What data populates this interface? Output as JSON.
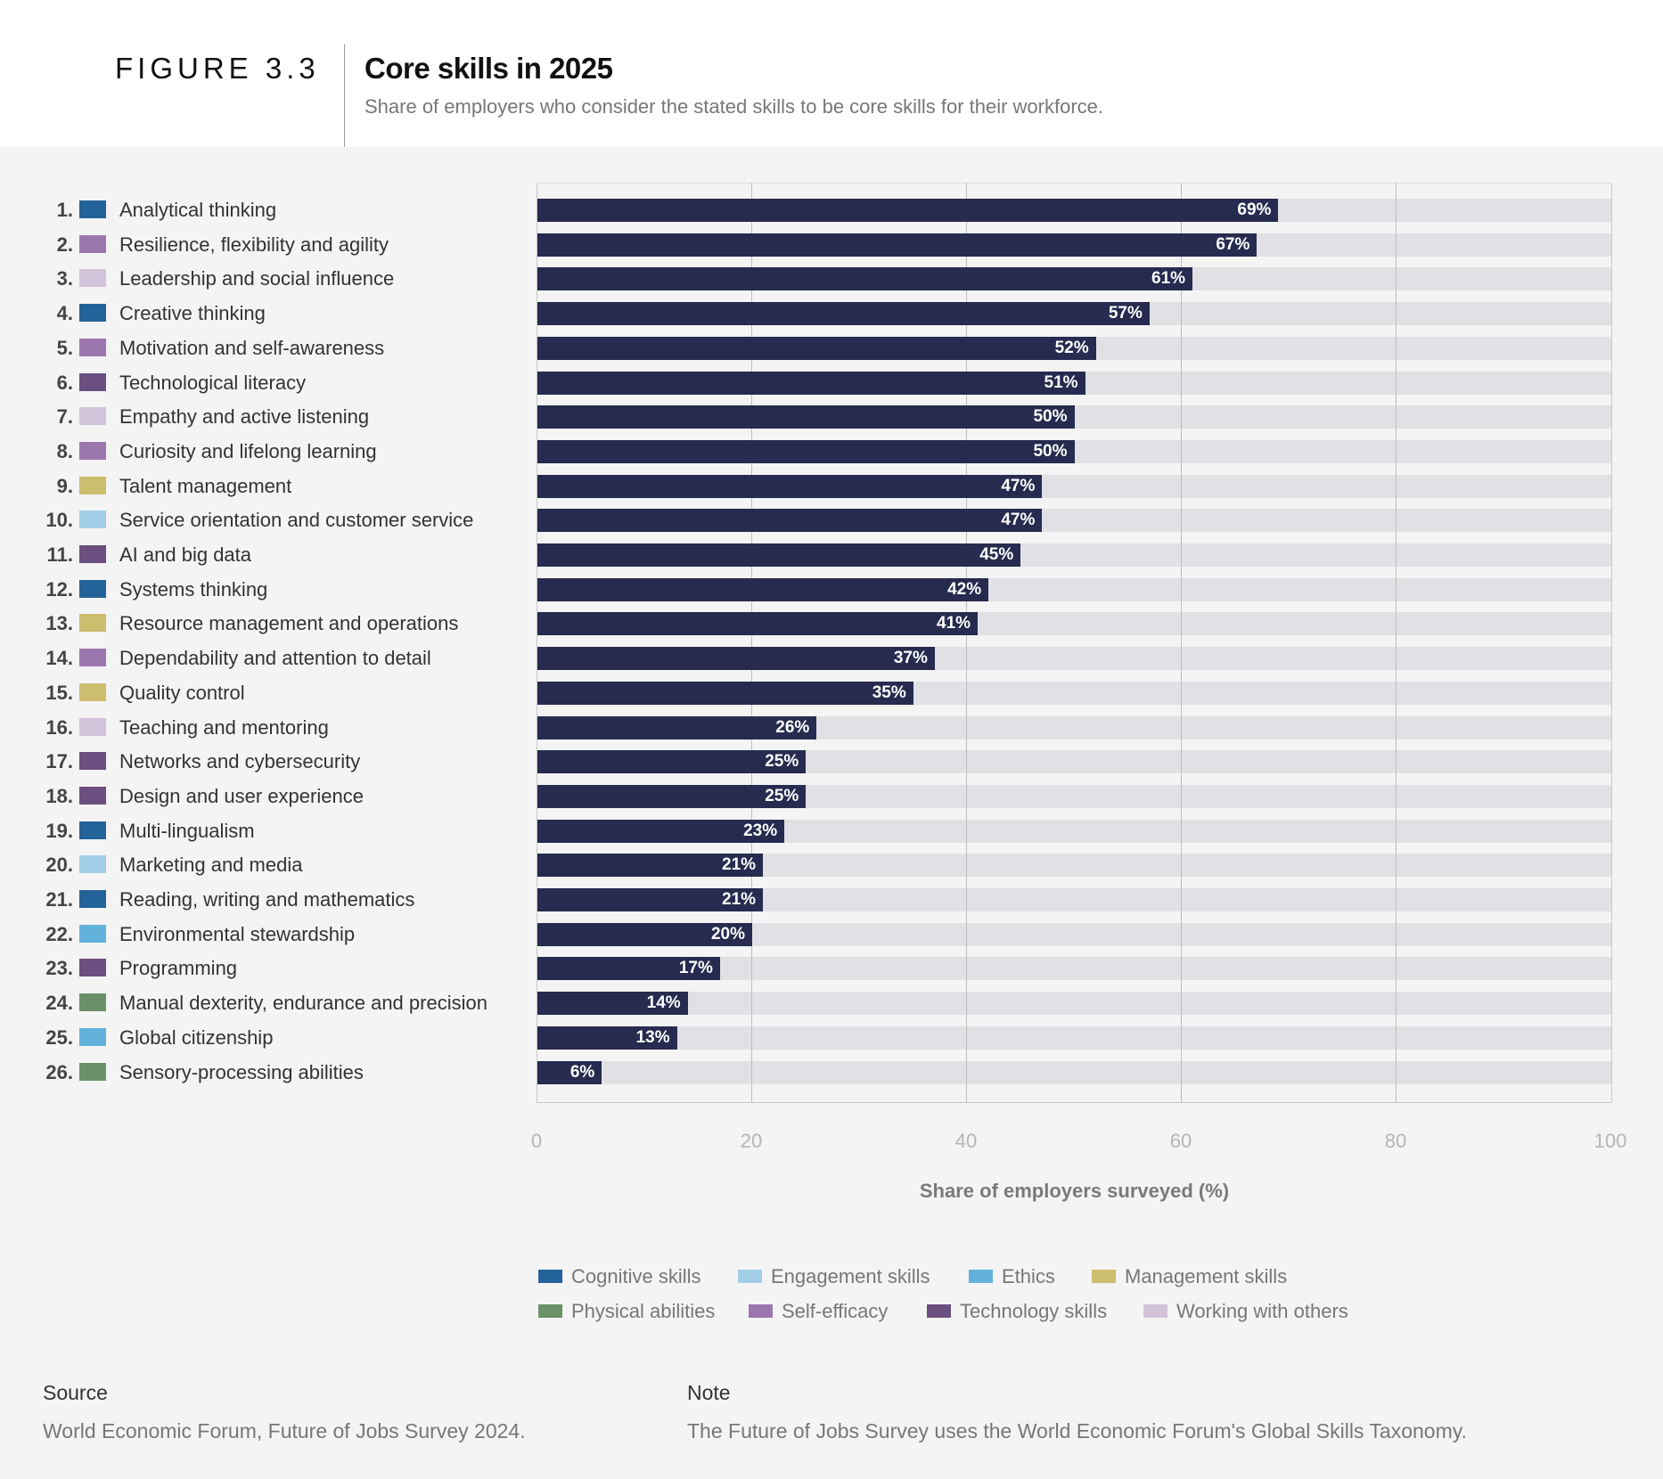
{
  "header": {
    "figure": "FIGURE 3.3",
    "title": "Core skills in 2025",
    "subtitle": "Share of employers who consider the stated skills to be core skills for their workforce."
  },
  "colors": {
    "bar": "#262b4f",
    "track": "#e1e1e5",
    "Cognitive skills": "#24639a",
    "Engagement skills": "#a2cde6",
    "Ethics": "#63b2dc",
    "Management skills": "#cdbd6e",
    "Physical abilities": "#6a9167",
    "Self-efficacy": "#9c76ae",
    "Technology skills": "#6b4f80",
    "Working with others": "#d2c3da"
  },
  "chart_data": {
    "type": "bar",
    "orientation": "horizontal",
    "title": "Core skills in 2025",
    "xlabel": "Share of employers surveyed (%)",
    "xlim": [
      0,
      100
    ],
    "xticks": [
      "0",
      "20",
      "40",
      "60",
      "80",
      "100"
    ],
    "grid": true,
    "legend_position": "bottom",
    "legend": [
      "Cognitive skills",
      "Engagement skills",
      "Ethics",
      "Management skills",
      "Physical abilities",
      "Self-efficacy",
      "Technology skills",
      "Working with others"
    ],
    "items": [
      {
        "rank": "1.",
        "label": "Analytical thinking",
        "value": 69,
        "category": "Cognitive skills"
      },
      {
        "rank": "2.",
        "label": "Resilience, flexibility and agility",
        "value": 67,
        "category": "Self-efficacy"
      },
      {
        "rank": "3.",
        "label": "Leadership and social influence",
        "value": 61,
        "category": "Working with others"
      },
      {
        "rank": "4.",
        "label": "Creative thinking",
        "value": 57,
        "category": "Cognitive skills"
      },
      {
        "rank": "5.",
        "label": "Motivation and self-awareness",
        "value": 52,
        "category": "Self-efficacy"
      },
      {
        "rank": "6.",
        "label": "Technological literacy",
        "value": 51,
        "category": "Technology skills"
      },
      {
        "rank": "7.",
        "label": "Empathy and active listening",
        "value": 50,
        "category": "Working with others"
      },
      {
        "rank": "8.",
        "label": "Curiosity and lifelong learning",
        "value": 50,
        "category": "Self-efficacy"
      },
      {
        "rank": "9.",
        "label": "Talent management",
        "value": 47,
        "category": "Management skills"
      },
      {
        "rank": "10.",
        "label": "Service orientation and customer service",
        "value": 47,
        "category": "Engagement skills"
      },
      {
        "rank": "11.",
        "label": "AI and big data",
        "value": 45,
        "category": "Technology skills"
      },
      {
        "rank": "12.",
        "label": "Systems thinking",
        "value": 42,
        "category": "Cognitive skills"
      },
      {
        "rank": "13.",
        "label": "Resource management and operations",
        "value": 41,
        "category": "Management skills"
      },
      {
        "rank": "14.",
        "label": "Dependability and attention to detail",
        "value": 37,
        "category": "Self-efficacy"
      },
      {
        "rank": "15.",
        "label": "Quality control",
        "value": 35,
        "category": "Management skills"
      },
      {
        "rank": "16.",
        "label": "Teaching and mentoring",
        "value": 26,
        "category": "Working with others"
      },
      {
        "rank": "17.",
        "label": "Networks and cybersecurity",
        "value": 25,
        "category": "Technology skills"
      },
      {
        "rank": "18.",
        "label": "Design and user experience",
        "value": 25,
        "category": "Technology skills"
      },
      {
        "rank": "19.",
        "label": "Multi-lingualism",
        "value": 23,
        "category": "Cognitive skills"
      },
      {
        "rank": "20.",
        "label": "Marketing and media",
        "value": 21,
        "category": "Engagement skills"
      },
      {
        "rank": "21.",
        "label": "Reading, writing and mathematics",
        "value": 21,
        "category": "Cognitive skills"
      },
      {
        "rank": "22.",
        "label": "Environmental stewardship",
        "value": 20,
        "category": "Ethics"
      },
      {
        "rank": "23.",
        "label": "Programming",
        "value": 17,
        "category": "Technology skills"
      },
      {
        "rank": "24.",
        "label": "Manual dexterity, endurance and precision",
        "value": 14,
        "category": "Physical abilities"
      },
      {
        "rank": "25.",
        "label": "Global citizenship",
        "value": 13,
        "category": "Ethics"
      },
      {
        "rank": "26.",
        "label": "Sensory-processing abilities",
        "value": 6,
        "category": "Physical abilities"
      }
    ]
  },
  "footer": {
    "source_heading": "Source",
    "source_text": "World Economic Forum, Future of Jobs Survey 2024.",
    "note_heading": "Note",
    "note_text": "The Future of Jobs Survey uses the World Economic Forum's Global Skills Taxonomy."
  }
}
